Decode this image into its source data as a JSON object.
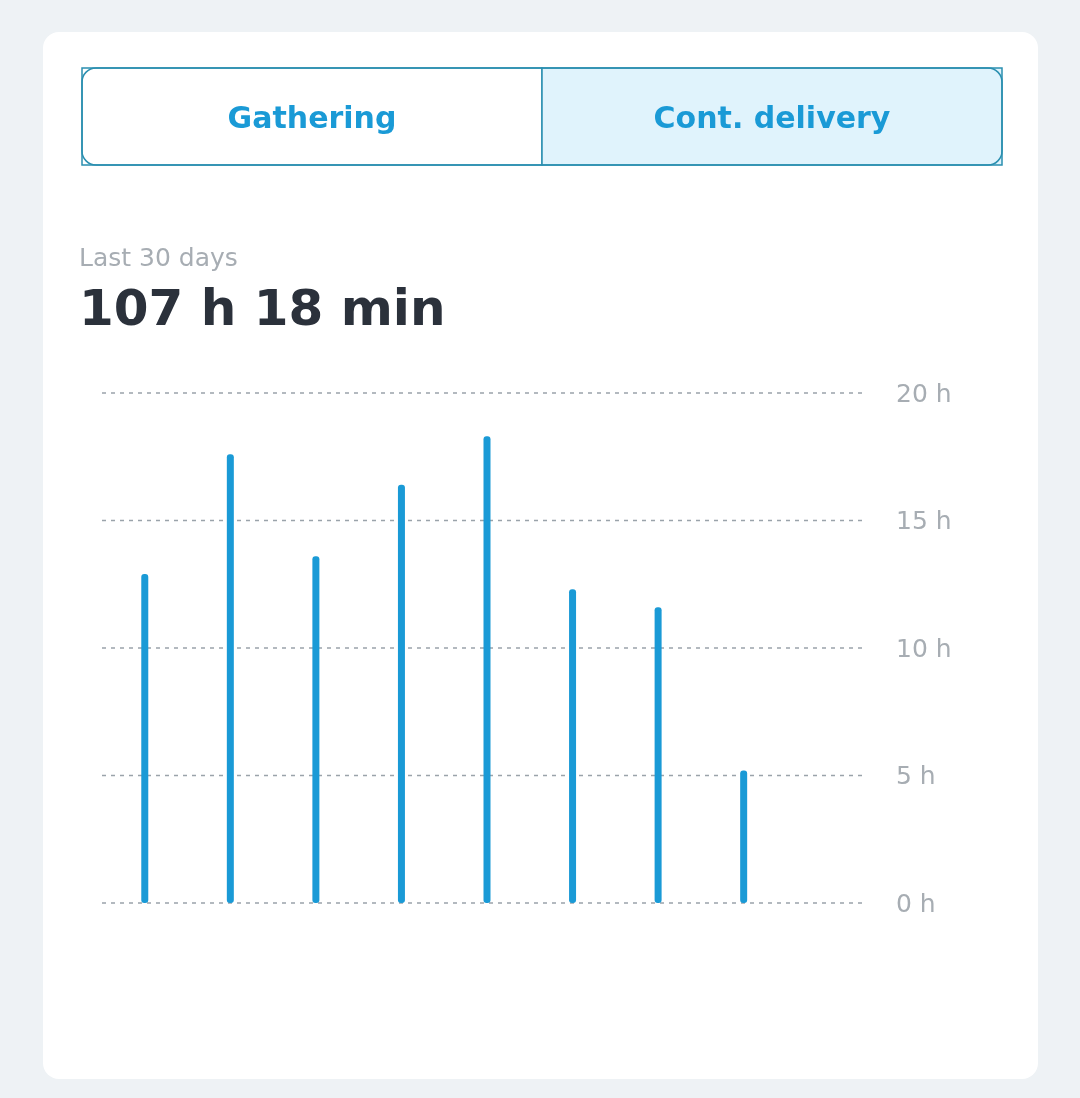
{
  "chart_data": {
    "type": "bar",
    "title": "107 h 18 min",
    "subtitle": "Last 30 days",
    "annotations": [
      "Gathering",
      "Cont. delivery"
    ],
    "categories": [
      null,
      null,
      null,
      null,
      null,
      null,
      null,
      null,
      null
    ],
    "values": [
      12.9,
      17.6,
      13.6,
      16.4,
      18.3,
      12.3,
      11.6,
      5.2,
      null
    ],
    "color": "#1a9ad6",
    "ylim": [
      0,
      20
    ],
    "yticks": [
      {
        "value": 0,
        "label": "0 h"
      },
      {
        "value": 5,
        "label": "5 h"
      },
      {
        "value": 10,
        "label": "10 h"
      },
      {
        "value": 15,
        "label": "15 h"
      },
      {
        "value": 20,
        "label": "20 h"
      }
    ],
    "grid": "y",
    "tick_labels": "y"
  }
}
